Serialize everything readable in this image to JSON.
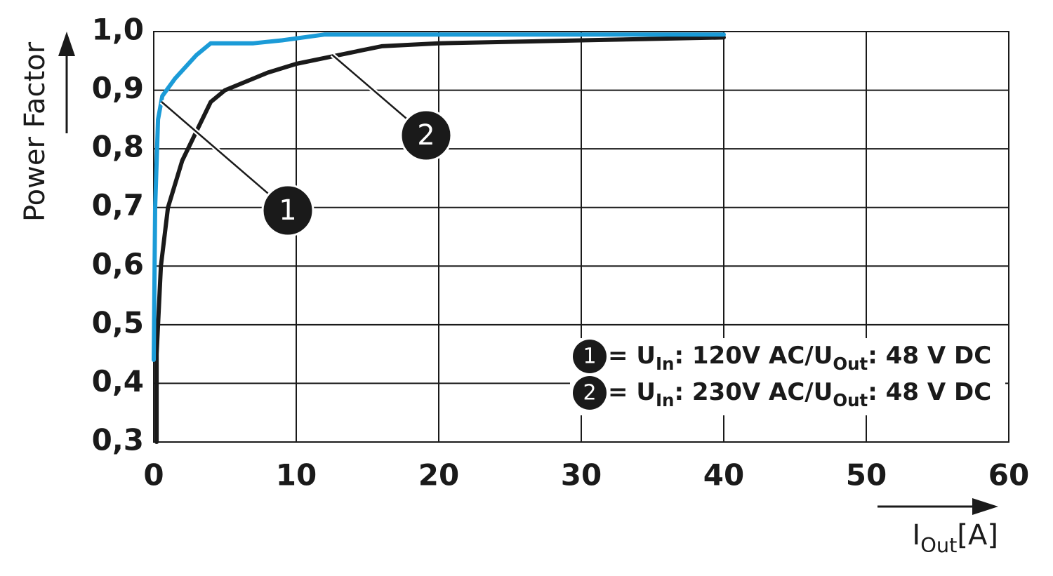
{
  "chart_data": {
    "type": "line",
    "ylabel": "Power Factor",
    "xlabel": [
      {
        "text": "I"
      },
      {
        "text": "Out",
        "sub": true
      },
      {
        "text": "[A]"
      }
    ],
    "xlim": [
      0,
      60
    ],
    "xticks": [
      0,
      10,
      20,
      30,
      40,
      50,
      60
    ],
    "ylim": [
      0.3,
      1.0
    ],
    "yticks": [
      {
        "value": 0.3,
        "label": "0,3"
      },
      {
        "value": 0.4,
        "label": "0,4"
      },
      {
        "value": 0.5,
        "label": "0,5"
      },
      {
        "value": 0.6,
        "label": "0,6"
      },
      {
        "value": 0.7,
        "label": "0,7"
      },
      {
        "value": 0.8,
        "label": "0,8"
      },
      {
        "value": 0.9,
        "label": "0,9"
      },
      {
        "value": 1.0,
        "label": "1,0"
      }
    ],
    "grid": true,
    "legend": "lower right",
    "series": [
      {
        "marker": "1",
        "name": [
          {
            "text": "= U"
          },
          {
            "text": "In",
            "sub": true
          },
          {
            "text": ": 120V AC/U"
          },
          {
            "text": "Out",
            "sub": true
          },
          {
            "text": ": 48 V DC"
          }
        ],
        "color": "#1b9bd7",
        "x": [
          0,
          0.1,
          0.3,
          0.6,
          1.5,
          3,
          4,
          7,
          9,
          12,
          20,
          30,
          40
        ],
        "values": [
          0.44,
          0.7,
          0.85,
          0.89,
          0.92,
          0.96,
          0.98,
          0.98,
          0.985,
          0.995,
          0.995,
          0.995,
          0.995
        ]
      },
      {
        "marker": "2",
        "name": [
          {
            "text": "= U"
          },
          {
            "text": "In",
            "sub": true
          },
          {
            "text": ": 230V AC/U"
          },
          {
            "text": "Out",
            "sub": true
          },
          {
            "text": ": 48 V DC"
          }
        ],
        "color": "#1a1a1a",
        "x": [
          0.2,
          0.2,
          0.5,
          1,
          2,
          3,
          4,
          5,
          8,
          10,
          13,
          16,
          20,
          30,
          40
        ],
        "values": [
          0.3,
          0.45,
          0.6,
          0.7,
          0.78,
          0.83,
          0.88,
          0.9,
          0.93,
          0.945,
          0.96,
          0.975,
          0.98,
          0.985,
          0.99
        ]
      }
    ]
  }
}
